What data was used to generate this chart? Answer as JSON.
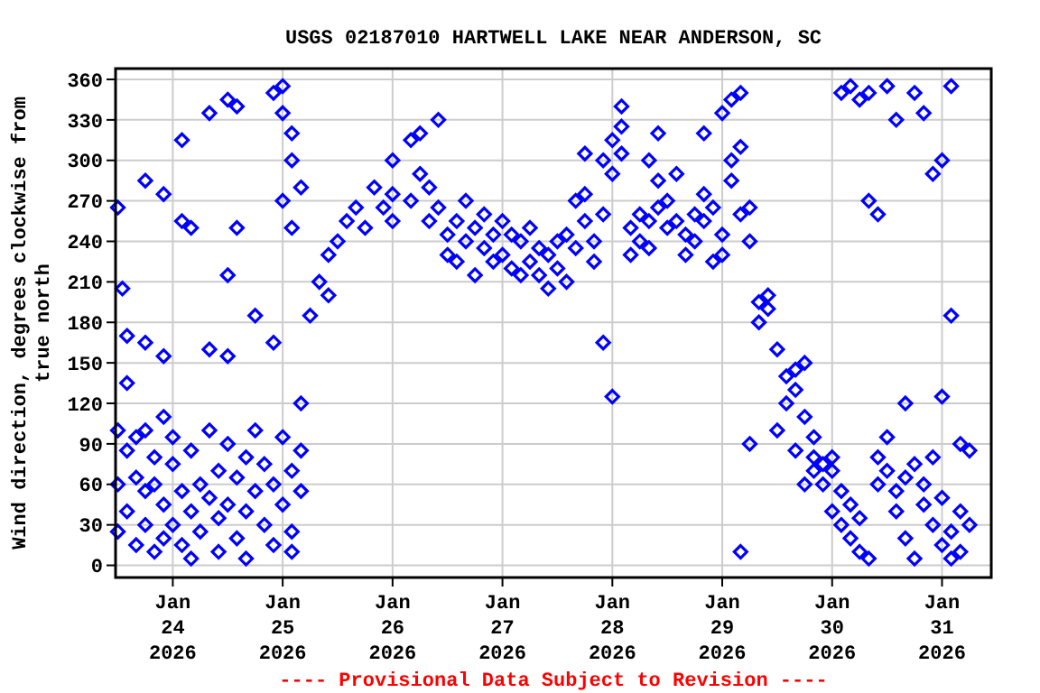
{
  "chart_data": {
    "type": "scatter",
    "title": "USGS 02187010 HARTWELL LAKE NEAR ANDERSON, SC",
    "ylabel": "Wind direction, degrees clockwise from\ntrue north",
    "annotations": [
      "---- Provisional Data Subject to Revision ----"
    ],
    "marker": "diamond",
    "grid": true,
    "xlim": [
      "2026-01-23T11:30",
      "2026-01-31T10:45"
    ],
    "xticks": [
      {
        "value": "2026-01-24",
        "label": "Jan\n24\n2026"
      },
      {
        "value": "2026-01-25",
        "label": "Jan\n25\n2026"
      },
      {
        "value": "2026-01-26",
        "label": "Jan\n26\n2026"
      },
      {
        "value": "2026-01-27",
        "label": "Jan\n27\n2026"
      },
      {
        "value": "2026-01-28",
        "label": "Jan\n28\n2026"
      },
      {
        "value": "2026-01-29",
        "label": "Jan\n29\n2026"
      },
      {
        "value": "2026-01-30",
        "label": "Jan\n30\n2026"
      },
      {
        "value": "2026-01-31",
        "label": "Jan\n31\n2026"
      }
    ],
    "ylim": [
      -9,
      368
    ],
    "yticks": [
      0,
      30,
      60,
      90,
      120,
      150,
      180,
      210,
      240,
      270,
      300,
      330,
      360
    ],
    "series": [
      {
        "color": "#0000ff",
        "x": [
          "2026-01-23T12:00",
          "2026-01-23T12:00",
          "2026-01-23T12:00",
          "2026-01-23T12:00",
          "2026-01-23T13:00",
          "2026-01-23T14:00",
          "2026-01-23T14:00",
          "2026-01-23T14:00",
          "2026-01-23T14:00",
          "2026-01-23T16:00",
          "2026-01-23T16:00",
          "2026-01-23T16:00",
          "2026-01-23T18:00",
          "2026-01-23T18:00",
          "2026-01-23T18:00",
          "2026-01-23T18:00",
          "2026-01-23T18:00",
          "2026-01-23T20:00",
          "2026-01-23T20:00",
          "2026-01-23T20:00",
          "2026-01-23T22:00",
          "2026-01-23T22:00",
          "2026-01-23T22:00",
          "2026-01-23T22:00",
          "2026-01-23T22:00",
          "2026-01-24T00:00",
          "2026-01-24T00:00",
          "2026-01-24T00:00",
          "2026-01-24T02:00",
          "2026-01-24T02:00",
          "2026-01-24T02:00",
          "2026-01-24T02:00",
          "2026-01-24T04:00",
          "2026-01-24T04:00",
          "2026-01-24T04:00",
          "2026-01-24T04:00",
          "2026-01-24T06:00",
          "2026-01-24T06:00",
          "2026-01-24T08:00",
          "2026-01-24T08:00",
          "2026-01-24T08:00",
          "2026-01-24T08:00",
          "2026-01-24T10:00",
          "2026-01-24T10:00",
          "2026-01-24T10:00",
          "2026-01-24T12:00",
          "2026-01-24T12:00",
          "2026-01-24T12:00",
          "2026-01-24T12:00",
          "2026-01-24T12:00",
          "2026-01-24T14:00",
          "2026-01-24T14:00",
          "2026-01-24T14:00",
          "2026-01-24T14:00",
          "2026-01-24T16:00",
          "2026-01-24T16:00",
          "2026-01-24T16:00",
          "2026-01-24T18:00",
          "2026-01-24T18:00",
          "2026-01-24T18:00",
          "2026-01-24T20:00",
          "2026-01-24T20:00",
          "2026-01-24T22:00",
          "2026-01-24T22:00",
          "2026-01-24T22:00",
          "2026-01-24T22:00",
          "2026-01-25T00:00",
          "2026-01-25T00:00",
          "2026-01-25T00:00",
          "2026-01-25T00:00",
          "2026-01-25T00:00",
          "2026-01-25T02:00",
          "2026-01-25T02:00",
          "2026-01-25T02:00",
          "2026-01-25T02:00",
          "2026-01-25T02:00",
          "2026-01-25T02:00",
          "2026-01-25T04:00",
          "2026-01-25T04:00",
          "2026-01-25T04:00",
          "2026-01-25T04:00",
          "2026-01-25T06:00",
          "2026-01-25T08:00",
          "2026-01-25T10:00",
          "2026-01-25T10:00",
          "2026-01-25T12:00",
          "2026-01-25T14:00",
          "2026-01-25T16:00",
          "2026-01-25T18:00",
          "2026-01-25T20:00",
          "2026-01-25T22:00",
          "2026-01-26T00:00",
          "2026-01-26T00:00",
          "2026-01-26T00:00",
          "2026-01-26T04:00",
          "2026-01-26T04:00",
          "2026-01-26T06:00",
          "2026-01-26T06:00",
          "2026-01-26T08:00",
          "2026-01-26T08:00",
          "2026-01-26T10:00",
          "2026-01-26T10:00",
          "2026-01-26T12:00",
          "2026-01-26T12:00",
          "2026-01-26T14:00",
          "2026-01-26T14:00",
          "2026-01-26T16:00",
          "2026-01-26T16:00",
          "2026-01-26T18:00",
          "2026-01-26T18:00",
          "2026-01-26T20:00",
          "2026-01-26T20:00",
          "2026-01-26T22:00",
          "2026-01-26T22:00",
          "2026-01-27T00:00",
          "2026-01-27T00:00",
          "2026-01-27T02:00",
          "2026-01-27T02:00",
          "2026-01-27T04:00",
          "2026-01-27T04:00",
          "2026-01-27T06:00",
          "2026-01-27T06:00",
          "2026-01-27T08:00",
          "2026-01-27T08:00",
          "2026-01-27T10:00",
          "2026-01-27T10:00",
          "2026-01-27T12:00",
          "2026-01-27T12:00",
          "2026-01-27T14:00",
          "2026-01-27T14:00",
          "2026-01-27T16:00",
          "2026-01-27T16:00",
          "2026-01-27T18:00",
          "2026-01-27T18:00",
          "2026-01-27T18:00",
          "2026-01-27T20:00",
          "2026-01-27T20:00",
          "2026-01-27T22:00",
          "2026-01-27T22:00",
          "2026-01-27T22:00",
          "2026-01-28T00:00",
          "2026-01-28T00:00",
          "2026-01-28T00:00",
          "2026-01-28T02:00",
          "2026-01-28T02:00",
          "2026-01-28T02:00",
          "2026-01-28T04:00",
          "2026-01-28T04:00",
          "2026-01-28T06:00",
          "2026-01-28T06:00",
          "2026-01-28T08:00",
          "2026-01-28T08:00",
          "2026-01-28T08:00",
          "2026-01-28T10:00",
          "2026-01-28T10:00",
          "2026-01-28T10:00",
          "2026-01-28T12:00",
          "2026-01-28T12:00",
          "2026-01-28T14:00",
          "2026-01-28T14:00",
          "2026-01-28T16:00",
          "2026-01-28T16:00",
          "2026-01-28T18:00",
          "2026-01-28T18:00",
          "2026-01-28T20:00",
          "2026-01-28T20:00",
          "2026-01-28T20:00",
          "2026-01-28T22:00",
          "2026-01-28T22:00",
          "2026-01-29T00:00",
          "2026-01-29T00:00",
          "2026-01-29T00:00",
          "2026-01-29T02:00",
          "2026-01-29T02:00",
          "2026-01-29T02:00",
          "2026-01-29T04:00",
          "2026-01-29T04:00",
          "2026-01-29T04:00",
          "2026-01-29T04:00",
          "2026-01-29T06:00",
          "2026-01-29T06:00",
          "2026-01-29T06:00",
          "2026-01-29T08:00",
          "2026-01-29T08:00",
          "2026-01-29T10:00",
          "2026-01-29T10:00",
          "2026-01-29T12:00",
          "2026-01-29T12:00",
          "2026-01-29T14:00",
          "2026-01-29T14:00",
          "2026-01-29T16:00",
          "2026-01-29T16:00",
          "2026-01-29T16:00",
          "2026-01-29T18:00",
          "2026-01-29T18:00",
          "2026-01-29T18:00",
          "2026-01-29T20:00",
          "2026-01-29T20:00",
          "2026-01-29T20:00",
          "2026-01-29T22:00",
          "2026-01-29T22:00",
          "2026-01-30T00:00",
          "2026-01-30T00:00",
          "2026-01-30T00:00",
          "2026-01-30T02:00",
          "2026-01-30T02:00",
          "2026-01-30T02:00",
          "2026-01-30T04:00",
          "2026-01-30T04:00",
          "2026-01-30T04:00",
          "2026-01-30T06:00",
          "2026-01-30T06:00",
          "2026-01-30T06:00",
          "2026-01-30T08:00",
          "2026-01-30T08:00",
          "2026-01-30T08:00",
          "2026-01-30T10:00",
          "2026-01-30T10:00",
          "2026-01-30T10:00",
          "2026-01-30T12:00",
          "2026-01-30T12:00",
          "2026-01-30T12:00",
          "2026-01-30T14:00",
          "2026-01-30T14:00",
          "2026-01-30T14:00",
          "2026-01-30T16:00",
          "2026-01-30T16:00",
          "2026-01-30T16:00",
          "2026-01-30T18:00",
          "2026-01-30T18:00",
          "2026-01-30T18:00",
          "2026-01-30T20:00",
          "2026-01-30T20:00",
          "2026-01-30T20:00",
          "2026-01-30T22:00",
          "2026-01-30T22:00",
          "2026-01-30T22:00",
          "2026-01-31T00:00",
          "2026-01-31T00:00",
          "2026-01-31T00:00",
          "2026-01-31T00:00",
          "2026-01-31T02:00",
          "2026-01-31T02:00",
          "2026-01-31T02:00",
          "2026-01-31T02:00",
          "2026-01-31T04:00",
          "2026-01-31T04:00",
          "2026-01-31T04:00",
          "2026-01-31T06:00",
          "2026-01-31T06:00"
        ],
        "values": [
          60,
          25,
          100,
          265,
          205,
          40,
          85,
          135,
          170,
          95,
          15,
          65,
          100,
          55,
          30,
          285,
          165,
          80,
          10,
          60,
          110,
          45,
          20,
          275,
          155,
          75,
          30,
          95,
          55,
          15,
          255,
          315,
          85,
          40,
          5,
          250,
          60,
          25,
          100,
          50,
          335,
          160,
          35,
          70,
          10,
          90,
          45,
          345,
          215,
          155,
          20,
          65,
          250,
          340,
          80,
          40,
          5,
          100,
          55,
          185,
          30,
          75,
          60,
          15,
          350,
          165,
          95,
          45,
          355,
          335,
          270,
          70,
          25,
          10,
          320,
          300,
          250,
          55,
          85,
          120,
          280,
          185,
          210,
          230,
          200,
          240,
          255,
          265,
          250,
          280,
          265,
          255,
          275,
          300,
          270,
          315,
          290,
          320,
          280,
          255,
          265,
          330,
          245,
          230,
          255,
          225,
          240,
          270,
          250,
          215,
          235,
          260,
          245,
          225,
          230,
          255,
          220,
          245,
          240,
          215,
          225,
          250,
          215,
          235,
          230,
          205,
          220,
          240,
          210,
          245,
          235,
          270,
          255,
          275,
          305,
          240,
          225,
          260,
          300,
          165,
          290,
          315,
          125,
          325,
          305,
          340,
          250,
          230,
          240,
          260,
          255,
          235,
          300,
          285,
          320,
          265,
          270,
          250,
          255,
          290,
          245,
          230,
          260,
          240,
          255,
          275,
          320,
          265,
          225,
          245,
          230,
          335,
          345,
          300,
          285,
          350,
          310,
          260,
          10,
          240,
          265,
          90,
          195,
          180,
          190,
          200,
          160,
          100,
          140,
          120,
          145,
          130,
          85,
          150,
          110,
          60,
          80,
          95,
          70,
          75,
          60,
          70,
          80,
          40,
          55,
          30,
          350,
          45,
          20,
          355,
          10,
          35,
          345,
          5,
          350,
          270,
          60,
          80,
          260,
          70,
          95,
          355,
          55,
          40,
          330,
          65,
          20,
          120,
          75,
          5,
          350,
          45,
          60,
          335,
          30,
          80,
          290,
          15,
          50,
          300,
          125,
          5,
          25,
          185,
          355,
          90,
          40,
          10,
          85,
          30
        ]
      }
    ]
  }
}
